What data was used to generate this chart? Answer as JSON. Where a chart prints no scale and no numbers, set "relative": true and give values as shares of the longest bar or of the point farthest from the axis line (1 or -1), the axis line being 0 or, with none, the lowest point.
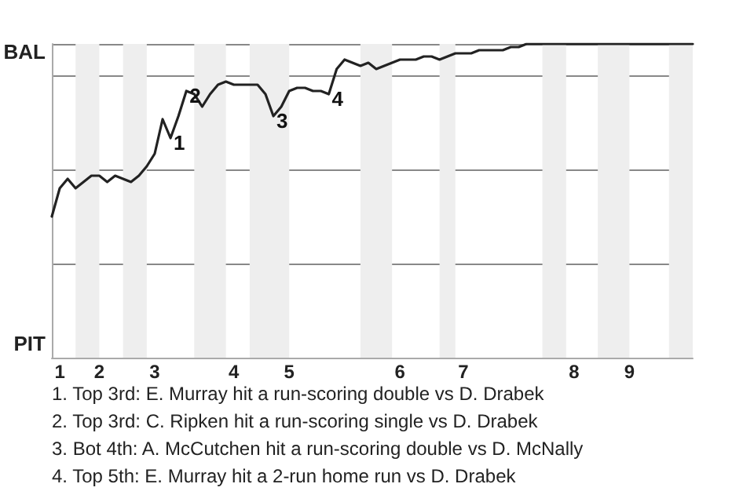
{
  "chart_data": {
    "type": "line",
    "relative": true,
    "categories": [
      null,
      "1",
      null,
      null,
      null,
      null,
      "2",
      null,
      null,
      null,
      null,
      null,
      null,
      "3",
      null,
      null,
      null,
      null,
      null,
      null,
      null,
      null,
      null,
      "4",
      null,
      null,
      null,
      null,
      null,
      null,
      "5",
      null,
      null,
      null,
      null,
      null,
      null,
      null,
      null,
      null,
      null,
      null,
      null,
      null,
      "6",
      null,
      null,
      null,
      null,
      null,
      null,
      null,
      "7",
      null,
      null,
      null,
      null,
      null,
      null,
      null,
      null,
      null,
      null,
      null,
      null,
      null,
      "8",
      null,
      null,
      null,
      null,
      null,
      null,
      "9",
      null,
      null,
      null,
      null,
      null,
      null,
      null,
      null
    ],
    "series": [
      {
        "color": "#222222",
        "values": [
          0.45,
          0.54,
          0.57,
          0.54,
          0.56,
          0.58,
          0.58,
          0.56,
          0.58,
          0.57,
          0.56,
          0.58,
          0.61,
          0.65,
          0.76,
          0.7,
          0.77,
          0.85,
          0.84,
          0.8,
          0.84,
          0.87,
          0.88,
          0.87,
          0.87,
          0.87,
          0.87,
          0.84,
          0.77,
          0.8,
          0.85,
          0.86,
          0.86,
          0.85,
          0.85,
          0.84,
          0.92,
          0.95,
          0.94,
          0.93,
          0.94,
          0.92,
          0.93,
          0.94,
          0.95,
          0.95,
          0.95,
          0.96,
          0.96,
          0.95,
          0.96,
          0.97,
          0.97,
          0.97,
          0.98,
          0.98,
          0.98,
          0.98,
          0.99,
          0.99,
          1.0,
          1.0,
          1.0,
          1.0,
          1.0,
          1.0,
          1.0,
          1.0,
          1.0,
          1.0,
          1.0,
          1.0,
          1.0,
          1.0,
          1.0,
          1.0,
          1.0,
          1.0,
          1.0,
          1.0,
          1.0,
          1.0
        ]
      }
    ],
    "grid": "y",
    "marker": "none",
    "line_style": "solid",
    "annotations": [
      {
        "text": "1",
        "y": 0.7
      },
      {
        "text": "2",
        "y": 0.85
      },
      {
        "text": "3",
        "y": 0.77
      },
      {
        "text": "4",
        "y": 0.84
      },
      "BAL",
      "PIT",
      "1. Top 3rd: E. Murray hit a run-scoring double vs D. Drabek",
      "2. Top 3rd: C. Ripken hit a run-scoring single vs D. Drabek",
      "3. Bot 4th: A. McCutchen hit a run-scoring double vs D. McNally",
      "4. Top 5th: E. Murray hit a 2-run home run vs D. Drabek"
    ]
  }
}
